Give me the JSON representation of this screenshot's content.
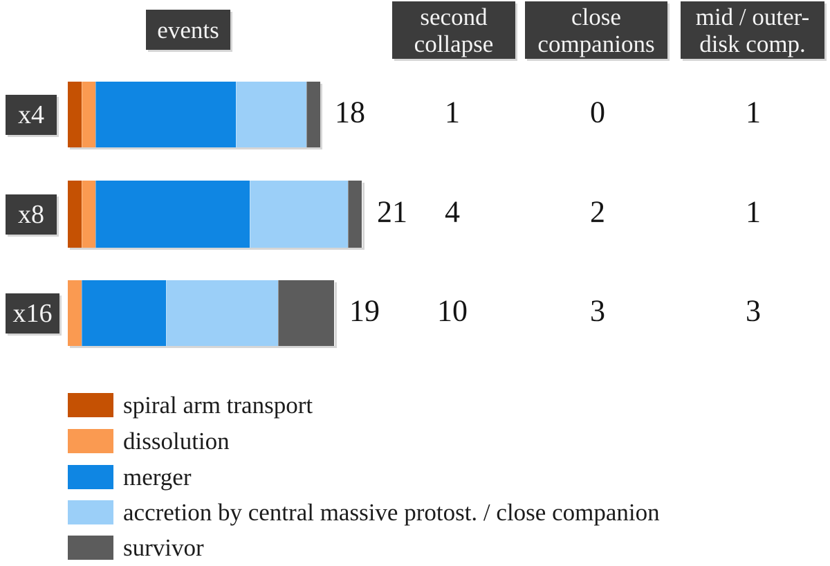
{
  "colors": {
    "background": "#ffffff",
    "box_bg": "#3c3c3c",
    "box_text": "#f3f3f3",
    "number_text": "#141414",
    "shadow": "#c9c9c9",
    "spiral_arm_transport": "#c55103",
    "dissolution": "#fa9a51",
    "merger": "#0f86e3",
    "accretion": "#9bcff8",
    "survivor": "#5c5c5c"
  },
  "header": {
    "events_label": "events",
    "columns": [
      {
        "key": "second-collapse",
        "lines": [
          "second",
          "collapse"
        ]
      },
      {
        "key": "close-companions",
        "lines": [
          "close",
          "companions"
        ]
      },
      {
        "key": "mid-outer-disk-comp",
        "lines": [
          "mid / outer-",
          "disk comp."
        ]
      }
    ]
  },
  "chart_data": {
    "type": "bar",
    "orientation": "horizontal",
    "stacked": true,
    "title": "",
    "xlabel": "",
    "ylabel": "",
    "categories": [
      "x4",
      "x8",
      "x16"
    ],
    "series": [
      {
        "key": "spiral-arm-transport",
        "name": "spiral arm transport",
        "color": "#c55103",
        "values": [
          1,
          1,
          0
        ]
      },
      {
        "key": "dissolution",
        "name": "dissolution",
        "color": "#fa9a51",
        "values": [
          1,
          1,
          1
        ]
      },
      {
        "key": "merger",
        "name": "merger",
        "color": "#0f86e3",
        "values": [
          10,
          11,
          6
        ]
      },
      {
        "key": "accretion",
        "name": "accretion by central massive protost. / close companion",
        "color": "#9bcff8",
        "values": [
          5,
          7,
          8
        ]
      },
      {
        "key": "survivor",
        "name": "survivor",
        "color": "#5c5c5c",
        "values": [
          1,
          1,
          4
        ]
      }
    ],
    "totals": [
      18,
      21,
      19
    ],
    "table_columns": [
      "second collapse",
      "close companions",
      "mid / outer-disk comp."
    ],
    "table_values": [
      [
        1,
        0,
        1
      ],
      [
        4,
        2,
        1
      ],
      [
        10,
        3,
        3
      ]
    ],
    "legend_position": "bottom-left",
    "grid": false
  },
  "legend": {
    "items": [
      {
        "key": "spiral-arm-transport",
        "label": "spiral arm transport",
        "color": "#c55103"
      },
      {
        "key": "dissolution",
        "label": "dissolution",
        "color": "#fa9a51"
      },
      {
        "key": "merger",
        "label": "merger",
        "color": "#0f86e3"
      },
      {
        "key": "accretion",
        "label": "accretion by central massive protost. / close companion",
        "color": "#9bcff8"
      },
      {
        "key": "survivor",
        "label": "survivor",
        "color": "#5c5c5c"
      }
    ]
  }
}
